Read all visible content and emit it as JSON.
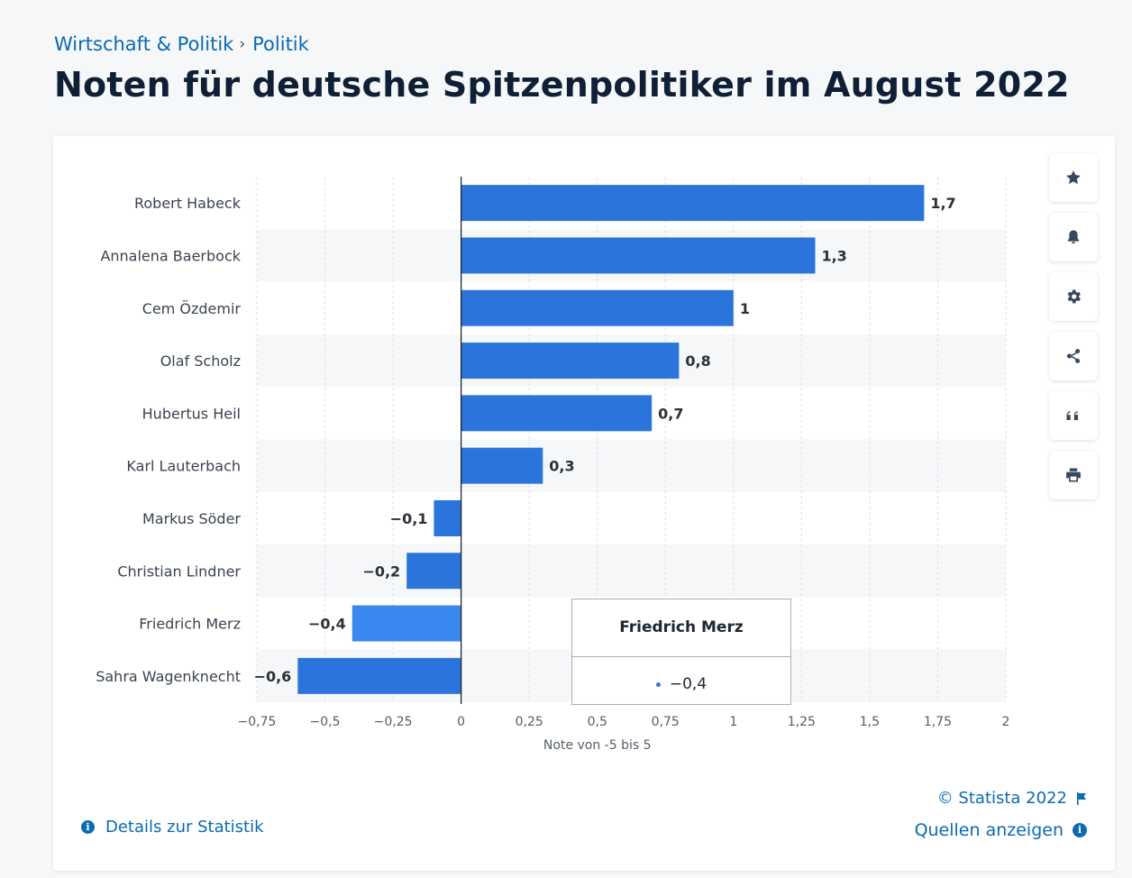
{
  "breadcrumb": {
    "parent": "Wirtschaft & Politik",
    "separator": "›",
    "current": "Politik"
  },
  "page_title": "Noten für deutsche Spitzenpolitiker im August 2022",
  "chart_data": {
    "type": "bar",
    "orientation": "horizontal",
    "categories": [
      "Robert Habeck",
      "Annalena Baerbock",
      "Cem Özdemir",
      "Olaf Scholz",
      "Hubertus Heil",
      "Karl Lauterbach",
      "Markus Söder",
      "Christian Lindner",
      "Friedrich Merz",
      "Sahra Wagenknecht"
    ],
    "values": [
      1.7,
      1.3,
      1,
      0.8,
      0.7,
      0.3,
      -0.1,
      -0.2,
      -0.4,
      -0.6
    ],
    "value_labels": [
      "1,7",
      "1,3",
      "1",
      "0,8",
      "0,7",
      "0,3",
      "−0,1",
      "−0,2",
      "−0,4",
      "−0,6"
    ],
    "xlim": [
      -0.75,
      2
    ],
    "x_ticks": [
      -0.75,
      -0.5,
      -0.25,
      0,
      0.25,
      0.5,
      0.75,
      1,
      1.25,
      1.5,
      1.75,
      2
    ],
    "x_tick_labels": [
      "−0,75",
      "−0,5",
      "−0,25",
      "0",
      "0,25",
      "0,5",
      "0,75",
      "1",
      "1,25",
      "1,5",
      "1,75",
      "2"
    ],
    "xlabel": "Note von -5 bis 5",
    "ylabel": "",
    "grid": "vertical dashed",
    "bar_color": "#2b74dc",
    "highlight_color": "#3a88ef",
    "highlighted_category": "Friedrich Merz"
  },
  "tooltip": {
    "title": "Friedrich Merz",
    "value": "−0,4"
  },
  "toolbar": {
    "icons": [
      "star-icon",
      "bell-icon",
      "gear-icon",
      "share-icon",
      "quote-icon",
      "print-icon"
    ]
  },
  "footer": {
    "details_label": "Details zur Statistik",
    "copyright": "© Statista 2022",
    "sources_label": "Quellen anzeigen"
  }
}
